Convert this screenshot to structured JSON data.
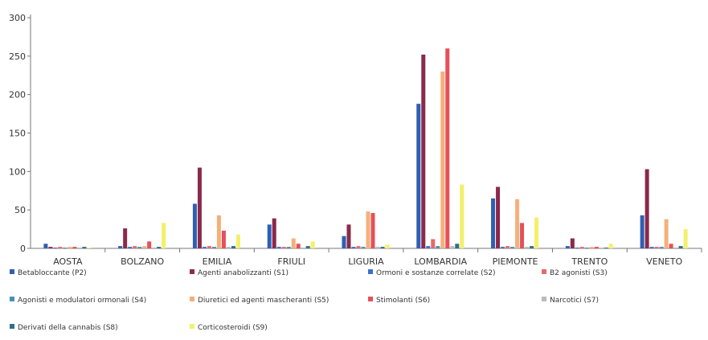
{
  "chart_data": {
    "type": "bar",
    "title": "",
    "xlabel": "",
    "ylabel": "",
    "ylim": [
      0,
      300
    ],
    "yticks": [
      0,
      50,
      100,
      150,
      200,
      250,
      300
    ],
    "grid": false,
    "legend_position": "bottom",
    "categories": [
      "AOSTA",
      "BOLZANO",
      "EMILIA",
      "FRIULI",
      "LIGURIA",
      "LOMBARDIA",
      "PIEMONTE",
      "TRENTO",
      "VENETO"
    ],
    "series": [
      {
        "name": "Betabloccante (P2)",
        "color": "#2f5fb3",
        "values": [
          6,
          3,
          58,
          31,
          16,
          188,
          65,
          3,
          43
        ]
      },
      {
        "name": "Agenti anabolizzanti (S1)",
        "color": "#8b2a4a",
        "values": [
          2,
          26,
          105,
          39,
          31,
          252,
          80,
          13,
          103
        ]
      },
      {
        "name": "Ormoni e sostanze correlate (S2)",
        "color": "#3b6fd0",
        "values": [
          1,
          2,
          2,
          2,
          2,
          3,
          2,
          1,
          2
        ]
      },
      {
        "name": "B2 agonisti (S3)",
        "color": "#e86a6a",
        "values": [
          2,
          3,
          3,
          2,
          3,
          12,
          3,
          2,
          2
        ]
      },
      {
        "name": "Agonisti e modulatori ormonali (S4)",
        "color": "#4a90b8",
        "values": [
          1,
          2,
          2,
          2,
          2,
          3,
          2,
          1,
          2
        ]
      },
      {
        "name": "Diuretici ed agenti mascheranti (S5)",
        "color": "#f5b07a",
        "values": [
          2,
          3,
          43,
          13,
          48,
          230,
          64,
          2,
          38
        ]
      },
      {
        "name": "Stimolanti (S6)",
        "color": "#e5505a",
        "values": [
          2,
          9,
          23,
          6,
          46,
          260,
          33,
          2,
          6
        ]
      },
      {
        "name": "Narcotici (S7)",
        "color": "#bbbbbb",
        "values": [
          1,
          1,
          2,
          1,
          2,
          3,
          2,
          1,
          1
        ]
      },
      {
        "name": "Derivati della cannabis (S8)",
        "color": "#2f6f86",
        "values": [
          2,
          2,
          3,
          3,
          2,
          6,
          3,
          1,
          3
        ]
      },
      {
        "name": "Corticosteroidi (S9)",
        "color": "#f3f06a",
        "values": [
          1,
          33,
          18,
          9,
          5,
          83,
          40,
          6,
          25
        ]
      }
    ]
  }
}
